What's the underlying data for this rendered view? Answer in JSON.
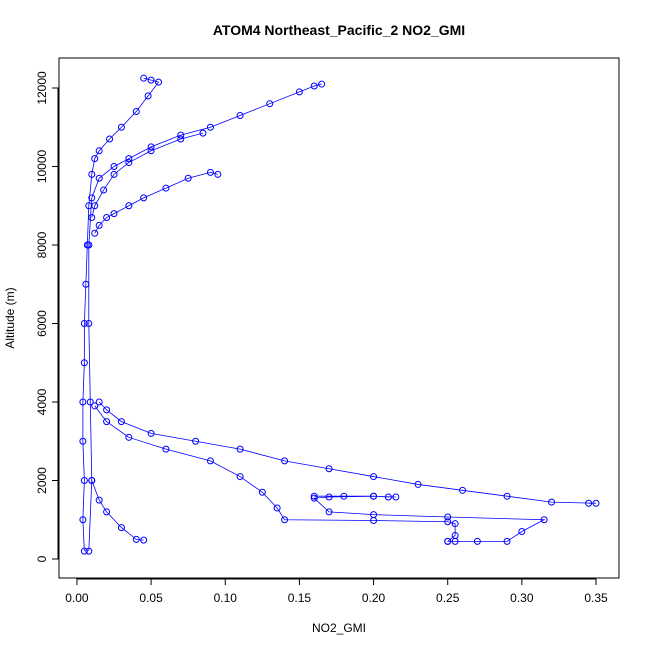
{
  "chart_data": {
    "type": "scatter",
    "title": "ATOM4 Northeast_Pacific_2 NO2_GMI",
    "x_label": "NO2_GMI",
    "y_label": "Altitude (m)",
    "xlim": [
      -0.0121,
      0.3655
    ],
    "ylim": [
      -484,
      12764
    ],
    "xticks": [
      {
        "value": 0,
        "label": "0.00"
      },
      {
        "value": 0.05,
        "label": "0.05"
      },
      {
        "value": 0.1,
        "label": "0.10"
      },
      {
        "value": 0.15,
        "label": "0.15"
      },
      {
        "value": 0.2,
        "label": "0.20"
      },
      {
        "value": 0.25,
        "label": "0.25"
      },
      {
        "value": 0.3,
        "label": "0.30"
      },
      {
        "value": 0.35,
        "label": "0.35"
      }
    ],
    "yticks": [
      0,
      2000,
      4000,
      6000,
      8000,
      10000,
      12000
    ],
    "color": "#0000ff",
    "series": [
      {
        "x": [
          0.045,
          0.05,
          0.055,
          0.048,
          0.04,
          0.03,
          0.022,
          0.015,
          0.012,
          0.01,
          0.008,
          0.007,
          0.006,
          0.005,
          0.005,
          0.004,
          0.004,
          0.005,
          0.004,
          0.005
        ],
        "values": [
          12250,
          12200,
          12150,
          11800,
          11400,
          11000,
          10700,
          10400,
          10200,
          9800,
          9000,
          8000,
          7000,
          6000,
          5000,
          4000,
          3000,
          2000,
          1000,
          200
        ]
      },
      {
        "x": [
          0.165,
          0.16,
          0.15,
          0.13,
          0.11,
          0.09,
          0.07,
          0.05,
          0.035,
          0.025,
          0.015,
          0.01,
          0.008,
          0.008,
          0.009,
          0.01,
          0.008
        ],
        "values": [
          12100,
          12050,
          11900,
          11600,
          11300,
          11000,
          10800,
          10500,
          10200,
          10000,
          9700,
          9200,
          8000,
          6000,
          4000,
          2000,
          200
        ]
      },
      {
        "x": [
          0.085,
          0.07,
          0.05,
          0.035,
          0.025,
          0.018,
          0.012,
          0.01
        ],
        "values": [
          10850,
          10700,
          10400,
          10100,
          9800,
          9400,
          9000,
          8700
        ]
      },
      {
        "x": [
          0.095,
          0.09,
          0.075,
          0.06,
          0.045,
          0.035,
          0.025,
          0.02,
          0.015,
          0.012
        ],
        "values": [
          9800,
          9850,
          9700,
          9450,
          9200,
          9000,
          8800,
          8700,
          8500,
          8300
        ]
      },
      {
        "x": [
          0.015,
          0.02,
          0.03,
          0.05,
          0.08,
          0.11,
          0.14,
          0.17,
          0.2,
          0.23,
          0.26,
          0.29,
          0.32,
          0.35,
          0.345
        ],
        "values": [
          4000,
          3800,
          3500,
          3200,
          3000,
          2800,
          2500,
          2300,
          2100,
          1900,
          1750,
          1600,
          1450,
          1420,
          1420
        ]
      },
      {
        "x": [
          0.012,
          0.02,
          0.035,
          0.06,
          0.09,
          0.11,
          0.125,
          0.135,
          0.14,
          0.2,
          0.25,
          0.255,
          0.255,
          0.25
        ],
        "values": [
          3900,
          3500,
          3100,
          2800,
          2500,
          2100,
          1700,
          1300,
          1000,
          980,
          950,
          900,
          600,
          450
        ]
      },
      {
        "x": [
          0.16,
          0.18,
          0.2,
          0.21,
          0.215,
          0.2,
          0.17,
          0.16,
          0.17,
          0.2,
          0.25,
          0.315,
          0.3,
          0.29,
          0.27,
          0.255,
          0.25
        ],
        "values": [
          1600,
          1600,
          1600,
          1580,
          1580,
          1600,
          1580,
          1550,
          1200,
          1130,
          1070,
          1000,
          700,
          450,
          450,
          450,
          450
        ]
      },
      {
        "x": [
          0.01,
          0.015,
          0.02,
          0.03,
          0.04,
          0.045
        ],
        "values": [
          2000,
          1500,
          1200,
          800,
          500,
          480
        ]
      }
    ]
  }
}
